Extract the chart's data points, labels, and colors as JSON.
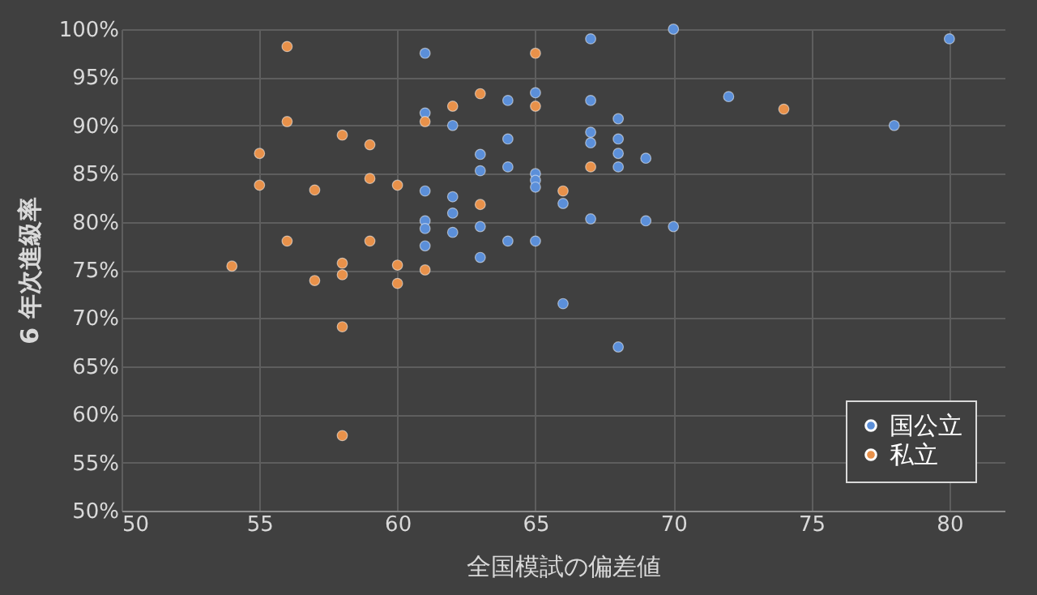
{
  "chart_data": {
    "type": "scatter",
    "xlabel": "全国模試の偏差値",
    "ylabel": "6 年次進級率",
    "xlim": [
      50,
      82
    ],
    "xticks": [
      50,
      55,
      60,
      65,
      70,
      75,
      80
    ],
    "ylim": [
      50,
      100
    ],
    "yticks": [
      {
        "value": 50,
        "label": "50%"
      },
      {
        "value": 55,
        "label": "55%"
      },
      {
        "value": 60,
        "label": "60%"
      },
      {
        "value": 65,
        "label": "65%"
      },
      {
        "value": 70,
        "label": "70%"
      },
      {
        "value": 75,
        "label": "75%"
      },
      {
        "value": 80,
        "label": "80%"
      },
      {
        "value": 85,
        "label": "85%"
      },
      {
        "value": 90,
        "label": "90%"
      },
      {
        "value": 95,
        "label": "95%"
      },
      {
        "value": 100,
        "label": "100%"
      }
    ],
    "grid": true,
    "legend": "bottom right",
    "marker": "circle",
    "series": [
      {
        "name": "国公立",
        "color": "#5b8fd9",
        "x": [
          61,
          67,
          70,
          80,
          72,
          78,
          61,
          62,
          64,
          65,
          67,
          68,
          64,
          63,
          63,
          64,
          65,
          65,
          65,
          67,
          67,
          68,
          68,
          68,
          69,
          66,
          61,
          62,
          62,
          61,
          61,
          62,
          63,
          67,
          69,
          70,
          61,
          64,
          65,
          63,
          66,
          68
        ],
        "values": [
          97.5,
          99,
          100,
          99,
          93,
          90,
          91.3,
          90,
          92.6,
          93.4,
          92.6,
          90.7,
          88.6,
          87,
          85.3,
          85.7,
          85,
          84.3,
          83.6,
          89.3,
          88.2,
          88.6,
          87.1,
          85.7,
          86.6,
          81.9,
          83.2,
          82.6,
          80.9,
          80.1,
          79.3,
          78.9,
          79.5,
          80.3,
          80.1,
          79.5,
          77.5,
          78,
          78,
          76.3,
          71.5,
          67
        ]
      },
      {
        "name": "私立",
        "color": "#e8914a",
        "x": [
          65,
          61,
          62,
          63,
          65,
          74,
          67,
          66,
          63,
          61,
          56,
          56,
          58,
          59,
          55,
          55,
          57,
          59,
          60,
          56,
          59,
          54,
          58,
          58,
          57,
          60,
          60,
          58,
          58
        ],
        "values": [
          97.5,
          90.4,
          92,
          93.3,
          92,
          91.7,
          85.7,
          83.2,
          81.8,
          75,
          98.2,
          90.4,
          89,
          88,
          87.1,
          83.8,
          83.3,
          84.5,
          83.8,
          78,
          78,
          75.4,
          75.7,
          74.5,
          73.9,
          75.5,
          73.6,
          69.1,
          57.8
        ]
      }
    ]
  }
}
